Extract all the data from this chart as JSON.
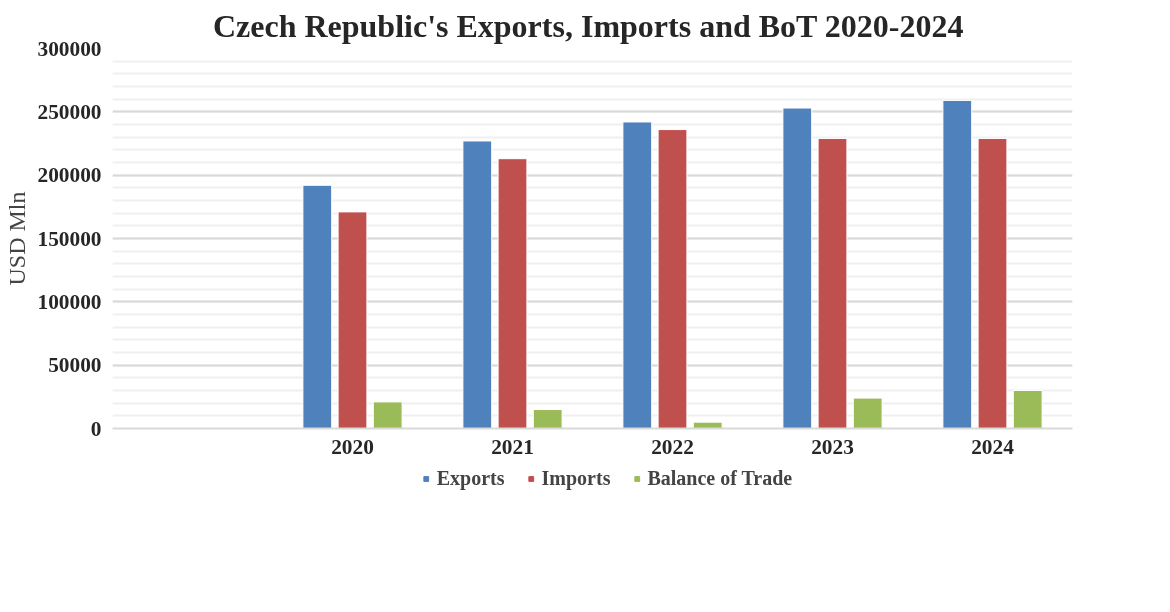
{
  "chart_data": {
    "type": "bar",
    "title": "Czech Republic's Exports, Imports and BoT  2020-2024",
    "ylabel": "USD Mln",
    "categories": [
      null,
      "2020",
      "2021",
      "2022",
      "2023",
      "2024"
    ],
    "series": [
      {
        "name": "Exports",
        "color": "#4f81bd",
        "values": [
          null,
          192000,
          227000,
          242000,
          253000,
          259000
        ]
      },
      {
        "name": "Imports",
        "color": "#c0504d",
        "values": [
          null,
          171000,
          213000,
          236000,
          229000,
          229000
        ]
      },
      {
        "name": "Balance of Trade",
        "color": "#9bbb59",
        "values": [
          null,
          21000,
          15000,
          5000,
          24000,
          30000
        ]
      }
    ],
    "ylim": [
      0,
      300000
    ],
    "yticks": [
      0,
      50000,
      100000,
      150000,
      200000,
      250000,
      300000
    ],
    "grid": "y",
    "legend": "bottom"
  }
}
